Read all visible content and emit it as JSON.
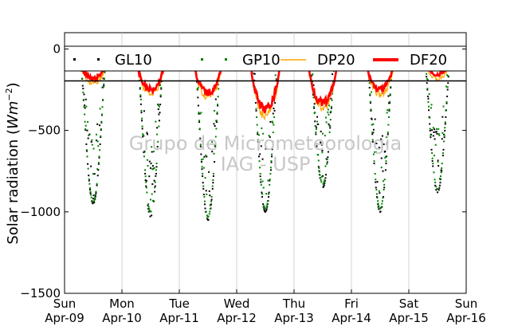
{
  "chart_data": {
    "type": "line",
    "ylabel": "Solar radiation ($Wm^{-2}$)",
    "ylabel_text": "Solar radiation (",
    "ylabel_unit": "Wm",
    "ylabel_exp": "−2",
    "ylabel_close": ")",
    "ylim": [
      -1500,
      100
    ],
    "yticks": [
      0,
      -500,
      -1000,
      -1500
    ],
    "ytick_labels": [
      "0",
      "−500",
      "−1000",
      "−1500"
    ],
    "xlim_days": [
      "Sun Apr-09",
      "Sun Apr-16"
    ],
    "xticks": [
      {
        "day": "Sun",
        "date": "Apr-09"
      },
      {
        "day": "Mon",
        "date": "Apr-10"
      },
      {
        "day": "Tue",
        "date": "Apr-11"
      },
      {
        "day": "Wed",
        "date": "Apr-12"
      },
      {
        "day": "Thu",
        "date": "Apr-13"
      },
      {
        "day": "Fri",
        "date": "Apr-14"
      },
      {
        "day": "Sat",
        "date": "Apr-15"
      },
      {
        "day": "Sun",
        "date": "Apr-16"
      }
    ],
    "grid": "vertical",
    "legend_position": "top",
    "series": [
      {
        "name": "GL10",
        "style": "dots",
        "color": "#000000",
        "daily_min": [
          -950,
          -1030,
          -1050,
          -1000,
          -850,
          -1000,
          -880
        ]
      },
      {
        "name": "GP10",
        "style": "dots",
        "color": "#008000",
        "daily_min": [
          -940,
          -1000,
          -1030,
          -980,
          -830,
          -980,
          -860
        ]
      },
      {
        "name": "DP20",
        "style": "thin-line",
        "color": "#ffa500",
        "daily_min": [
          -230,
          -300,
          -320,
          -440,
          -390,
          -300,
          -200
        ]
      },
      {
        "name": "DF20",
        "style": "thick-line",
        "color": "#ff0000",
        "daily_min": [
          -200,
          -270,
          -290,
          -400,
          -360,
          -270,
          -170
        ]
      }
    ]
  },
  "watermark": {
    "line1": "Grupo de Micrometeorologia",
    "line2": "IAG - USP"
  }
}
